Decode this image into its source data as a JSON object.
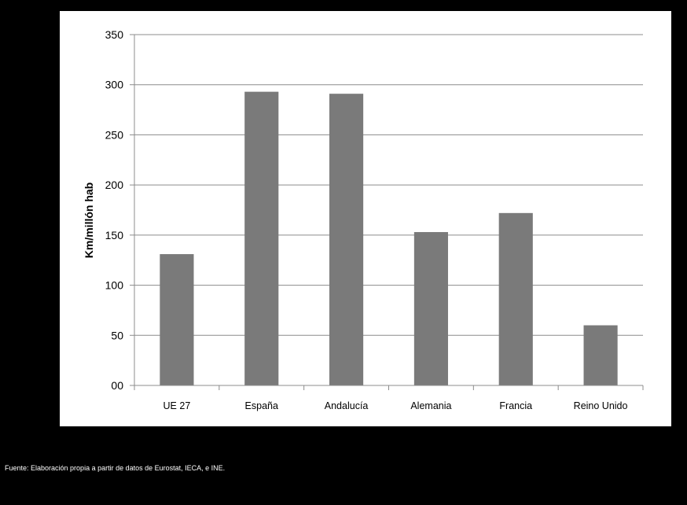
{
  "colors": {
    "background": "#000000",
    "panel": "#ffffff",
    "bar": "#7a7a7a",
    "grid": "#8c8c8c",
    "axis": "#8c8c8c",
    "text": "#000000",
    "footnote": "#ffffff"
  },
  "footnote": "Fuente:  Elaboración propia a partir de datos de Eurostat, IECA, e INE.",
  "chart_data": {
    "type": "bar",
    "categories": [
      "UE 27",
      "España",
      "Andalucía",
      "Alemania",
      "Francia",
      "Reino Unido"
    ],
    "values": [
      131,
      293,
      291,
      153,
      172,
      60
    ],
    "ylabel": "Km/millón hab",
    "xlabel": "",
    "ylim": [
      0,
      350
    ],
    "yticks": [
      0,
      50,
      100,
      150,
      200,
      250,
      300,
      350
    ],
    "ytick_labels": [
      "00",
      "50",
      "100",
      "150",
      "200",
      "250",
      "300",
      "350"
    ],
    "grid": true,
    "legend": "none"
  }
}
